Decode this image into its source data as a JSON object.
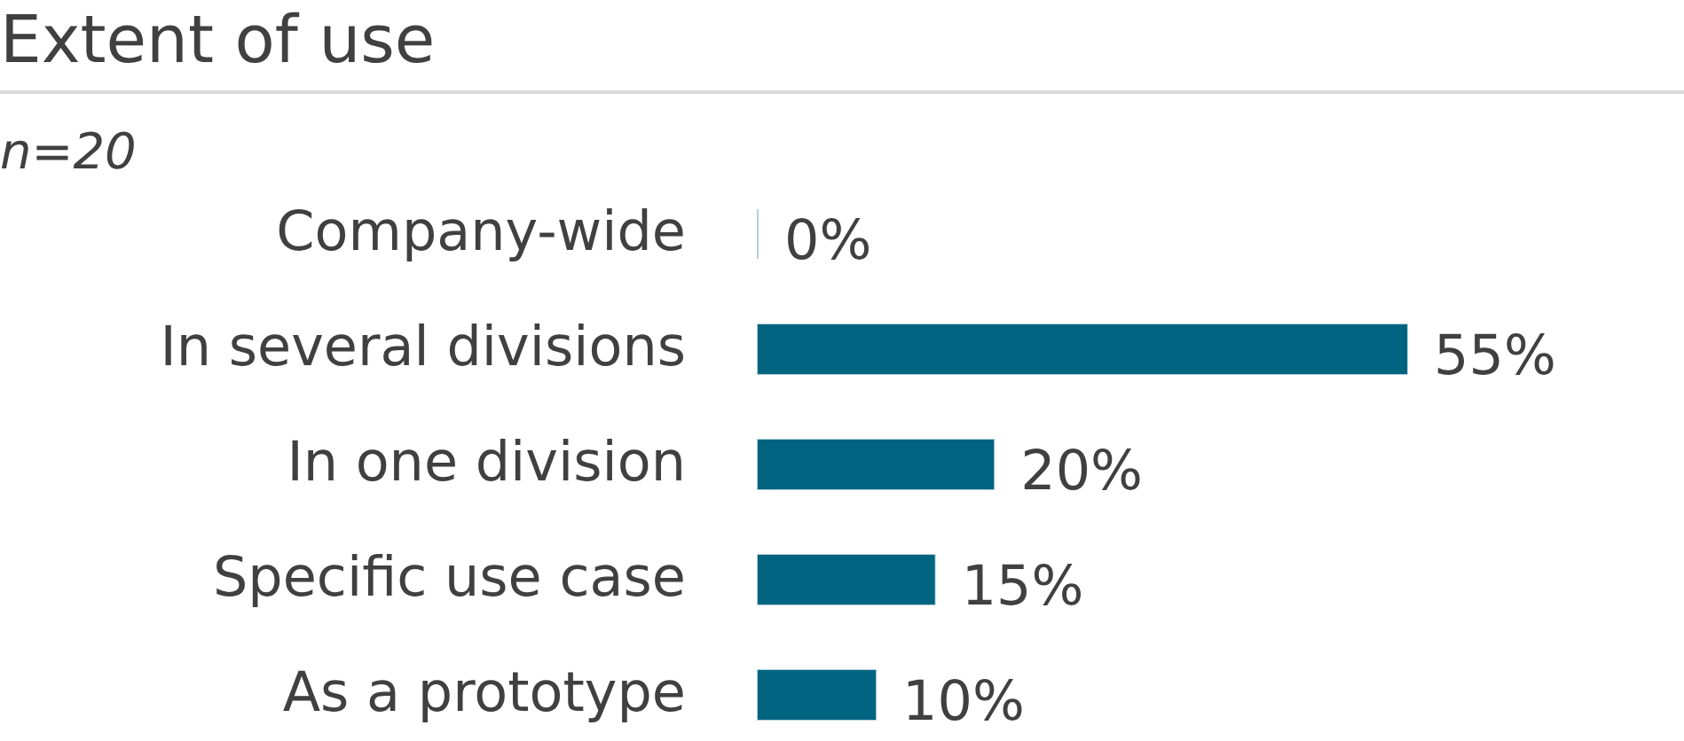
{
  "chart_data": {
    "type": "bar",
    "title": "Extent of use",
    "subtitle": "n=20",
    "orientation": "horizontal",
    "tick_labels": "y",
    "categories": [
      "Company-wide",
      "In several divisions",
      "In one division",
      "Specific use case",
      "As a prototype"
    ],
    "values": [
      0,
      55,
      20,
      15,
      10
    ],
    "color": "#006480",
    "value_labels": [
      "0%",
      "55%",
      "20%",
      "15%",
      "10%"
    ]
  }
}
